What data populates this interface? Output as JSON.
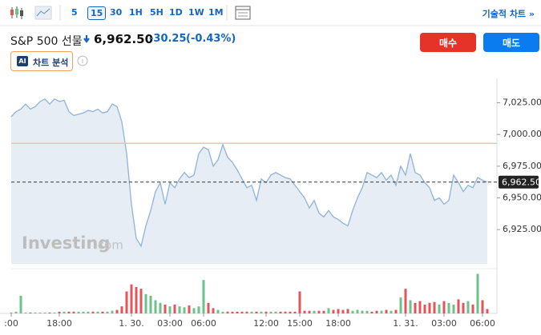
{
  "toolbar": {
    "intervals": [
      "5",
      "15",
      "30",
      "1H",
      "5H",
      "1D",
      "1W",
      "1M"
    ],
    "selected": 1,
    "technical_link": "기술적 차트 »"
  },
  "header": {
    "name": "S&P 500 선물",
    "price": "6,962.50",
    "change": "-30.25",
    "change_pct": "(-0.43%)",
    "buy": "매수",
    "sell": "매도",
    "ai_badge": "AI",
    "ai_label": "차트 분석"
  },
  "watermark": {
    "brand": "Investing",
    "suffix": ".com"
  },
  "chart_data": {
    "type": "area",
    "color": "#8fb3d9",
    "fill": "#e6edf5",
    "categories": [
      ":00",
      null,
      null,
      null,
      null,
      null,
      null,
      null,
      null,
      null,
      "18:00",
      null,
      null,
      null,
      null,
      null,
      null,
      null,
      null,
      null,
      null,
      null,
      null,
      null,
      null,
      "1. 30.",
      null,
      null,
      null,
      null,
      null,
      null,
      null,
      "03:00",
      null,
      null,
      null,
      null,
      null,
      null,
      "06:00",
      null,
      null,
      null,
      null,
      null,
      null,
      null,
      null,
      null,
      null,
      null,
      null,
      "12:00",
      null,
      null,
      null,
      null,
      null,
      null,
      "15:00",
      null,
      null,
      null,
      null,
      null,
      null,
      null,
      "18:00",
      null,
      null,
      null,
      null,
      null,
      null,
      null,
      null,
      null,
      null,
      null,
      null,
      null,
      "1. 31.",
      null,
      null,
      null,
      null,
      null,
      null,
      null,
      "03:00",
      null,
      null,
      null,
      null,
      null,
      null,
      null,
      "06:00",
      null
    ],
    "values": [
      7014,
      7018,
      7020,
      7024,
      7020,
      7022,
      7026,
      7028,
      7024,
      7028,
      7026,
      7027,
      7018,
      7015,
      7016,
      7017,
      7019,
      7018,
      7020,
      7017,
      7018,
      7024,
      7022,
      7010,
      6985,
      6945,
      6918,
      6912,
      6928,
      6940,
      6955,
      6962,
      6945,
      6962,
      6958,
      6965,
      6970,
      6966,
      6968,
      6985,
      6990,
      6988,
      6975,
      6980,
      6992,
      6982,
      6978,
      6972,
      6965,
      6958,
      6960,
      6948,
      6965,
      6962,
      6968,
      6970,
      6968,
      6966,
      6965,
      6960,
      6955,
      6950,
      6942,
      6948,
      6938,
      6935,
      6940,
      6935,
      6933,
      6930,
      6928,
      6940,
      6950,
      6958,
      6970,
      6968,
      6966,
      6970,
      6964,
      6968,
      6960,
      6975,
      6968,
      6985,
      6970,
      6968,
      6962,
      6958,
      6948,
      6950,
      6945,
      6948,
      6968,
      6962,
      6955,
      6960,
      6958,
      6966,
      6964,
      6962.5
    ],
    "ylim": [
      6898,
      7043
    ],
    "yticks": [
      {
        "value": 7025,
        "label": "7,025.00"
      },
      {
        "value": 7000,
        "label": "7,000.00"
      },
      {
        "value": 6975,
        "label": "6,975.00"
      },
      {
        "value": 6950,
        "label": "6,950.00"
      },
      {
        "value": 6925,
        "label": "6,925.00"
      }
    ],
    "ref_line": {
      "value": 6993,
      "color": "#f5bdb4"
    },
    "last_price": {
      "value": 6962.5,
      "label": "6,962.50"
    },
    "volume": {
      "ylim": [
        0,
        50
      ],
      "up_color": "#6cc28a",
      "down_color": "#e0565b",
      "values": [
        1,
        2,
        20,
        1,
        1,
        1,
        1,
        1,
        1,
        1,
        2,
        2,
        2,
        2,
        2,
        2,
        2,
        2,
        2,
        2,
        2,
        3,
        4,
        8,
        25,
        33,
        30,
        28,
        22,
        20,
        15,
        12,
        10,
        8,
        10,
        8,
        7,
        9,
        6,
        8,
        38,
        12,
        6,
        4,
        2,
        2,
        2,
        2,
        2,
        2,
        2,
        2,
        2,
        2,
        2,
        2,
        2,
        2,
        2,
        2,
        25,
        3,
        3,
        3,
        3,
        3,
        6,
        4,
        5,
        4,
        5,
        3,
        4,
        3,
        3,
        2,
        3,
        3,
        4,
        3,
        4,
        18,
        28,
        15,
        12,
        14,
        10,
        12,
        13,
        10,
        14,
        12,
        10,
        16,
        12,
        14,
        10,
        45,
        15,
        5
      ]
    }
  }
}
